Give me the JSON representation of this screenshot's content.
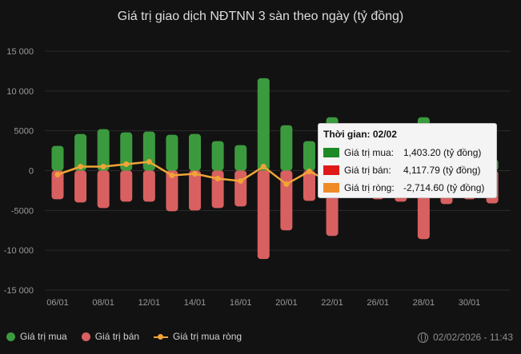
{
  "chart_data": {
    "type": "bar",
    "title": "Giá trị giao dịch NĐTNN 3 sàn theo ngày (tỷ đồng)",
    "xlabel": "",
    "ylabel": "",
    "ylim": [
      -15000,
      15000
    ],
    "yticks": [
      15000,
      10000,
      5000,
      0,
      -5000,
      -10000,
      -15000
    ],
    "ytick_labels": [
      "15 000",
      "10 000",
      "5000",
      "0",
      "-5000",
      "-10 000",
      "-15 000"
    ],
    "xtick_labels": [
      "06/01",
      "08/01",
      "12/01",
      "14/01",
      "16/01",
      "20/01",
      "22/01",
      "26/01",
      "28/01",
      "30/01"
    ],
    "xtick_positions": [
      0,
      2,
      4,
      6,
      8,
      10,
      12,
      14,
      16,
      18
    ],
    "n_days": 20,
    "grid": true,
    "legend_position": "bottom-left",
    "series": [
      {
        "name": "Giá trị mua",
        "type": "bar",
        "color": "#3c9a3e",
        "values": [
          3100,
          4600,
          5200,
          4800,
          4900,
          4500,
          4600,
          3700,
          3200,
          11600,
          5700,
          3700,
          6700,
          3000,
          3200,
          3400,
          6700,
          2900,
          3800,
          1403.2
        ]
      },
      {
        "name": "Giá trị bán",
        "type": "bar",
        "color": "#d96060",
        "values": [
          -3600,
          -4000,
          -4700,
          -3900,
          -3900,
          -5100,
          -5000,
          -4700,
          -4500,
          -11100,
          -7500,
          -3800,
          -8200,
          -3400,
          -3600,
          -3900,
          -8600,
          -4200,
          -3600,
          -4117.79
        ]
      },
      {
        "name": "Giá trị mua ròng",
        "type": "line",
        "color": "#f0a437",
        "values": [
          -500,
          500,
          500,
          800,
          1100,
          -600,
          -400,
          -1000,
          -1300,
          500,
          -1700,
          -100,
          -1500,
          -400,
          -400,
          -500,
          -1900,
          -1300,
          200,
          -2714.6
        ]
      }
    ]
  },
  "tooltip": {
    "header": "Thời gian: 02/02",
    "rows": [
      {
        "label": "Giá trị mua:",
        "value": "1,403.20 (tỷ đồng)",
        "color": "#1e8a26"
      },
      {
        "label": "Giá trị bán:",
        "value": "4,117.79 (tỷ đồng)",
        "color": "#e01818"
      },
      {
        "label": "Giá trị ròng:",
        "value": "-2,714.60 (tỷ đồng)",
        "color": "#f08a28"
      }
    ]
  },
  "legend": {
    "items": [
      {
        "label": "Giá trị mua",
        "color": "#3c9a3e",
        "kind": "dot"
      },
      {
        "label": "Giá trị bán",
        "color": "#d96060",
        "kind": "dot"
      },
      {
        "label": "Giá trị mua ròng",
        "color": "#f0a437",
        "kind": "line"
      }
    ]
  },
  "footer": {
    "timestamp": "02/02/2026 - 11:43",
    "icon": "globe-icon"
  }
}
